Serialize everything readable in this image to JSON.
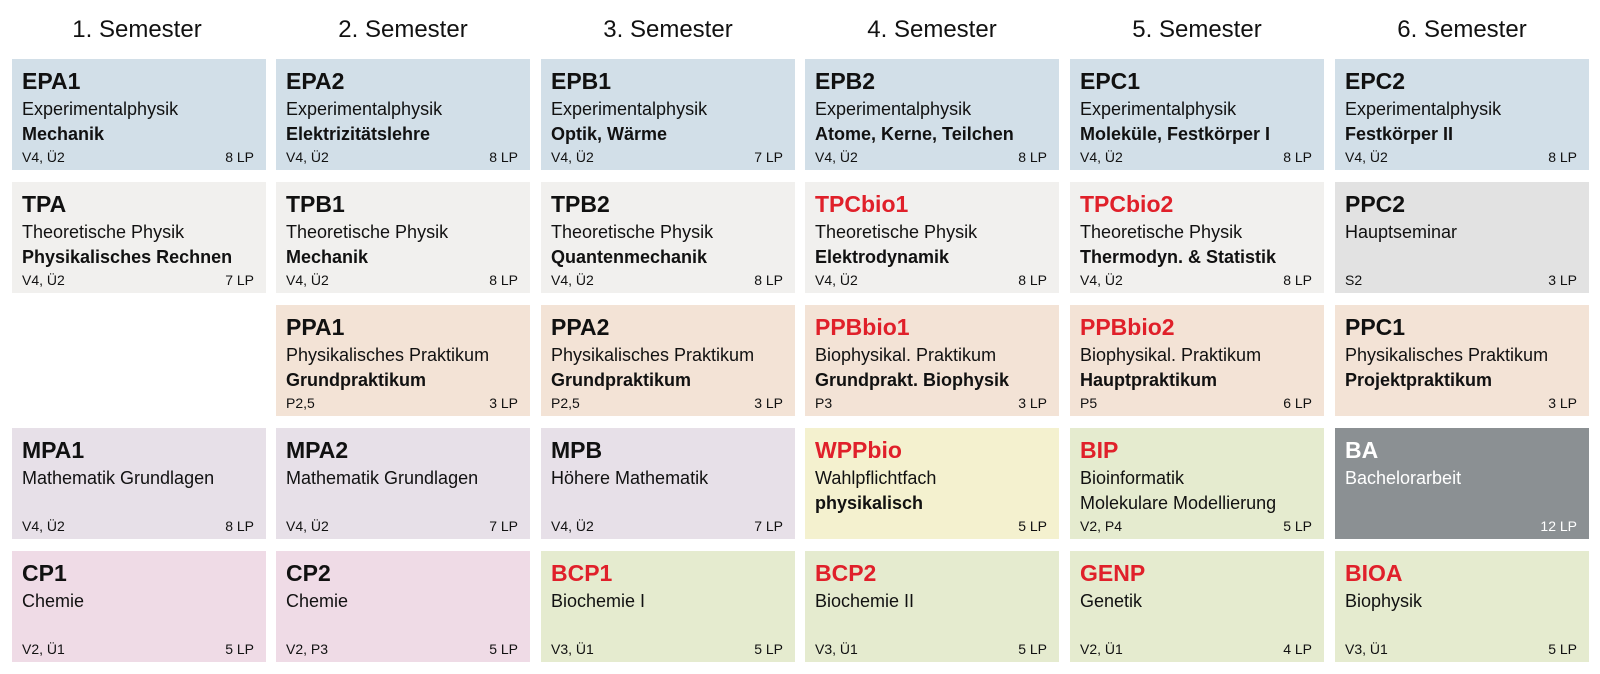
{
  "headers": [
    "1. Semester",
    "2. Semester",
    "3. Semester",
    "4. Semester",
    "5. Semester",
    "6. Semester"
  ],
  "colors": {
    "experimentalphysik": "#d2dfe8",
    "theorie": "#f1f0ee",
    "hauptseminar": "#e2e2e2",
    "praktikum": "#f3e3d6",
    "mathematik": "#e7e0e8",
    "chemie": "#efdbe6",
    "biologie": "#e5ebcf",
    "wahlpflicht": "#f4f1cf",
    "bachelorarbeit": "#8b9093",
    "highlight_red": "#e0202a"
  },
  "rows": [
    [
      {
        "code": "EPA1",
        "title": "Experimentalphysik",
        "subtitle": "Mechanik",
        "hours": "V4, Ü2",
        "lp": "8 LP"
      },
      {
        "code": "EPA2",
        "title": "Experimentalphysik",
        "subtitle": "Elektrizitätslehre",
        "hours": "V4, Ü2",
        "lp": "8 LP"
      },
      {
        "code": "EPB1",
        "title": "Experimentalphysik",
        "subtitle": "Optik, Wärme",
        "hours": "V4, Ü2",
        "lp": "7 LP"
      },
      {
        "code": "EPB2",
        "title": "Experimentalphysik",
        "subtitle": "Atome, Kerne, Teilchen",
        "hours": "V4, Ü2",
        "lp": "8 LP"
      },
      {
        "code": "EPC1",
        "title": "Experimentalphysik",
        "subtitle": "Moleküle, Festkörper I",
        "hours": "V4, Ü2",
        "lp": "8 LP"
      },
      {
        "code": "EPC2",
        "title": "Experimentalphysik",
        "subtitle": "Festkörper II",
        "hours": "V4, Ü2",
        "lp": "8 LP"
      }
    ],
    [
      {
        "code": "TPA",
        "title": "Theoretische Physik",
        "subtitle": "Physikalisches Rechnen",
        "hours": "V4, Ü2",
        "lp": "7 LP"
      },
      {
        "code": "TPB1",
        "title": "Theoretische Physik",
        "subtitle": "Mechanik",
        "hours": "V4, Ü2",
        "lp": "8 LP"
      },
      {
        "code": "TPB2",
        "title": "Theoretische Physik",
        "subtitle": "Quantenmechanik",
        "hours": "V4, Ü2",
        "lp": "8 LP"
      },
      {
        "code": "TPCbio1",
        "title": "Theoretische Physik",
        "subtitle": "Elektrodynamik",
        "hours": "V4, Ü2",
        "lp": "8 LP"
      },
      {
        "code": "TPCbio2",
        "title": "Theoretische Physik",
        "subtitle": "Thermodyn. & Statistik",
        "hours": "V4, Ü2",
        "lp": "8 LP"
      },
      {
        "code": "PPC2",
        "title": "Hauptseminar",
        "subtitle": "",
        "hours": "S2",
        "lp": "3 LP"
      }
    ],
    [
      null,
      {
        "code": "PPA1",
        "title": "Physikalisches Praktikum",
        "subtitle": "Grundpraktikum",
        "hours": "P2,5",
        "lp": "3 LP"
      },
      {
        "code": "PPA2",
        "title": "Physikalisches Praktikum",
        "subtitle": "Grundpraktikum",
        "hours": "P2,5",
        "lp": "3 LP"
      },
      {
        "code": "PPBbio1",
        "title": "Biophysikal. Praktikum",
        "subtitle": "Grundprakt. Biophysik",
        "hours": "P3",
        "lp": "3 LP"
      },
      {
        "code": "PPBbio2",
        "title": "Biophysikal. Praktikum",
        "subtitle": "Hauptpraktikum",
        "hours": "P5",
        "lp": "6 LP"
      },
      {
        "code": "PPC1",
        "title": "Physikalisches Praktikum",
        "subtitle": "Projektpraktikum",
        "hours": "",
        "lp": "3 LP"
      }
    ],
    [
      {
        "code": "MPA1",
        "title": "Mathematik Grundlagen",
        "subtitle": "",
        "hours": "V4, Ü2",
        "lp": "8 LP"
      },
      {
        "code": "MPA2",
        "title": "Mathematik Grundlagen",
        "subtitle": "",
        "hours": "V4, Ü2",
        "lp": "7 LP"
      },
      {
        "code": "MPB",
        "title": "Höhere Mathematik",
        "subtitle": "",
        "hours": "V4, Ü2",
        "lp": "7 LP"
      },
      {
        "code": "WPPbio",
        "title": "Wahlpflichtfach",
        "subtitle": "physikalisch",
        "hours": "",
        "lp": "5 LP"
      },
      {
        "code": "BIP",
        "title": "Bioinformatik",
        "subtitle": "Molekulare Modellierung",
        "hours": "V2, P4",
        "lp": "5 LP"
      },
      {
        "code": "BA",
        "title": "Bachelorarbeit",
        "subtitle": "",
        "hours": "",
        "lp": "12 LP"
      }
    ],
    [
      {
        "code": "CP1",
        "title": "Chemie",
        "subtitle": "",
        "hours": "V2, Ü1",
        "lp": "5 LP"
      },
      {
        "code": "CP2",
        "title": "Chemie",
        "subtitle": "",
        "hours": "V2, P3",
        "lp": "5 LP"
      },
      {
        "code": "BCP1",
        "title": "Biochemie I",
        "subtitle": "",
        "hours": "V3, Ü1",
        "lp": "5 LP"
      },
      {
        "code": "BCP2",
        "title": "Biochemie II",
        "subtitle": "",
        "hours": "V3, Ü1",
        "lp": "5 LP"
      },
      {
        "code": "GENP",
        "title": "Genetik",
        "subtitle": "",
        "hours": "V2, Ü1",
        "lp": "4 LP"
      },
      {
        "code": "BIOA",
        "title": "Biophysik",
        "subtitle": "",
        "hours": "V3, Ü1",
        "lp": "5 LP"
      }
    ]
  ]
}
